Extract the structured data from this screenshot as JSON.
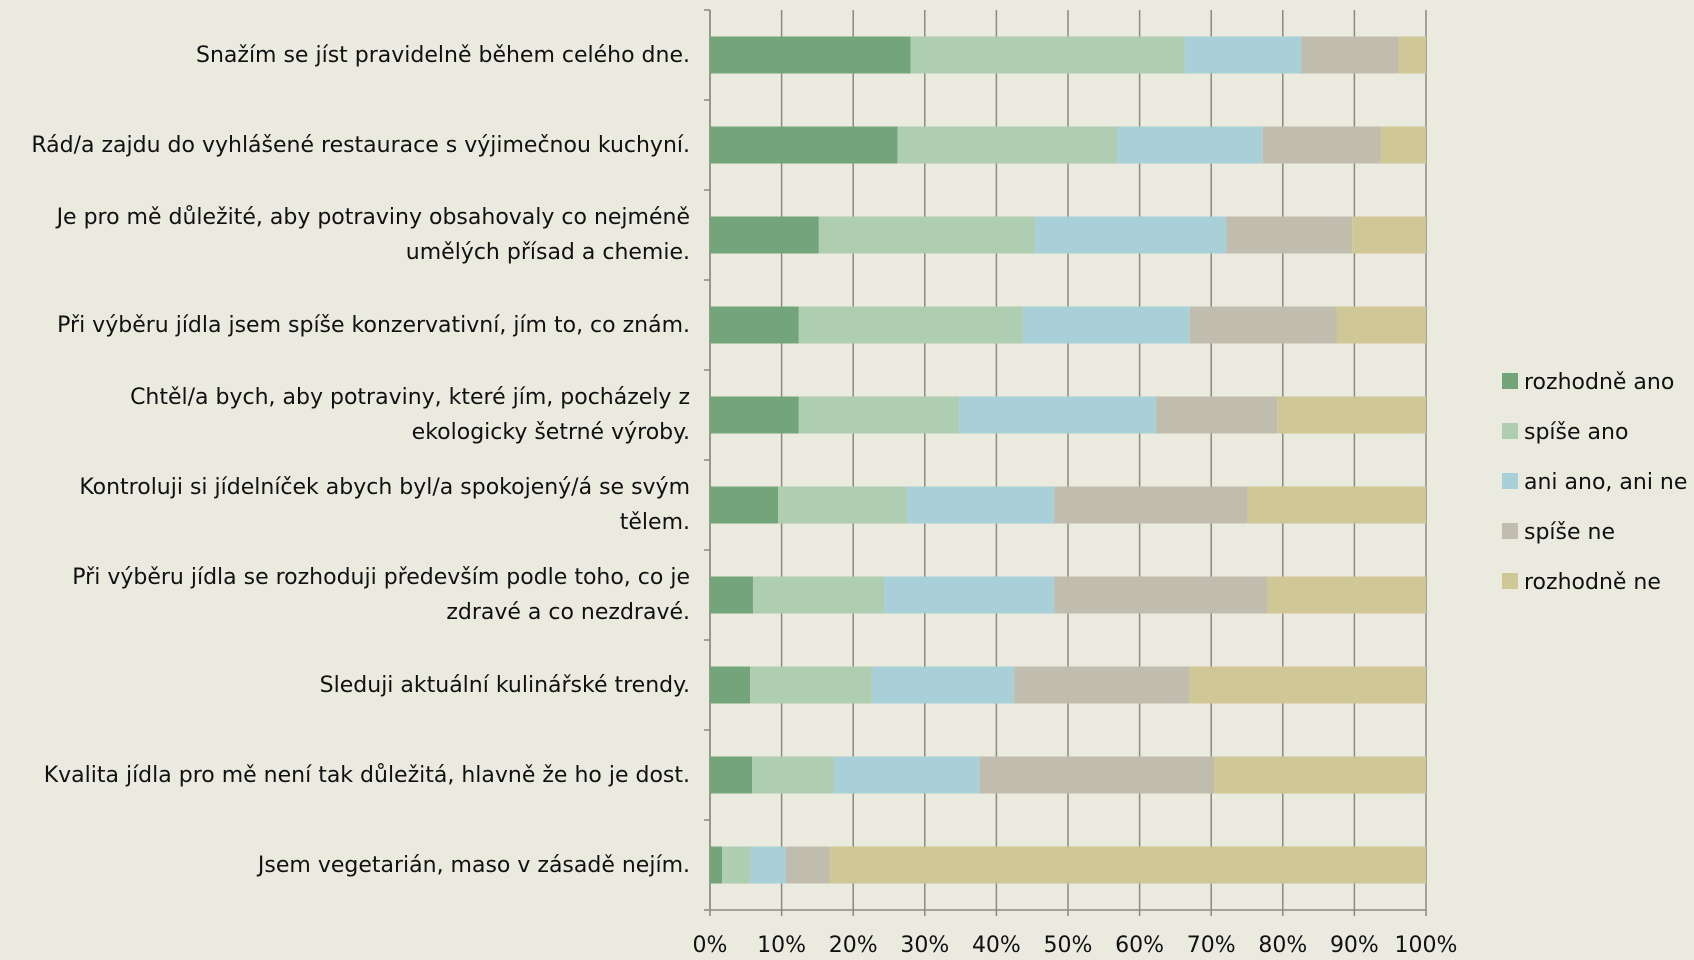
{
  "chart_data": {
    "type": "stacked-bar-horizontal",
    "categories": [
      "Snažím se jíst pravidelně během celého dne.",
      "Rád/a zajdu do vyhlášené restaurace s výjimečnou kuchyní.",
      "Je pro mě důležité, aby potraviny obsahovaly co nejméně umělých přísad a chemie.",
      "Při výběru jídla jsem spíše konzervativní, jím to, co znám.",
      "Chtěl/a bych, aby potraviny, které jím, pocházely z ekologicky šetrné výroby.",
      "Kontroluji si jídelníček abych byl/a spokojený/á se svým tělem.",
      "Při výběru jídla se rozhoduji především podle toho, co je zdravé a co nezdravé.",
      "Sleduji aktuální kulinářské trendy.",
      "Kvalita jídla pro mě není tak důležitá, hlavně že ho je dost.",
      "Jsem vegetarián, maso v zásadě nejím."
    ],
    "series": [
      {
        "name": "rozhodně ano",
        "color": "#74a57a",
        "values": [
          28,
          26.2,
          15.2,
          12.4,
          12.4,
          9.5,
          6,
          5.6,
          5.9,
          1.7
        ]
      },
      {
        "name": "spíše ano",
        "color": "#afcdb0",
        "values": [
          38.3,
          30.7,
          30.2,
          31.3,
          22.4,
          18,
          18.3,
          17,
          11.4,
          3.9
        ]
      },
      {
        "name": "ani ano, ani ne",
        "color": "#a9cfd9",
        "values": [
          16.3,
          20.3,
          26.7,
          23.3,
          27.5,
          20.6,
          23.8,
          19.9,
          20.4,
          5
        ]
      },
      {
        "name": "spíše ne",
        "color": "#c0bdae",
        "values": [
          13.6,
          16.5,
          17.6,
          20.5,
          16.9,
          27,
          29.7,
          24.5,
          32.7,
          6.1
        ]
      },
      {
        "name": "rozhodně ne",
        "color": "#d0c797",
        "values": [
          3.8,
          6.3,
          10.3,
          12.5,
          20.8,
          24.9,
          22.2,
          33,
          29.6,
          83.3
        ]
      }
    ],
    "xlim": [
      0,
      100
    ],
    "xticks": [
      {
        "value": 0,
        "label": "0%"
      },
      {
        "value": 10,
        "label": "10%"
      },
      {
        "value": 20,
        "label": "20%"
      },
      {
        "value": 30,
        "label": "30%"
      },
      {
        "value": 40,
        "label": "40%"
      },
      {
        "value": 50,
        "label": "50%"
      },
      {
        "value": 60,
        "label": "60%"
      },
      {
        "value": 70,
        "label": "70%"
      },
      {
        "value": 80,
        "label": "80%"
      },
      {
        "value": 90,
        "label": "90%"
      },
      {
        "value": 100,
        "label": "100%"
      }
    ],
    "grid": true,
    "legend": "right"
  }
}
